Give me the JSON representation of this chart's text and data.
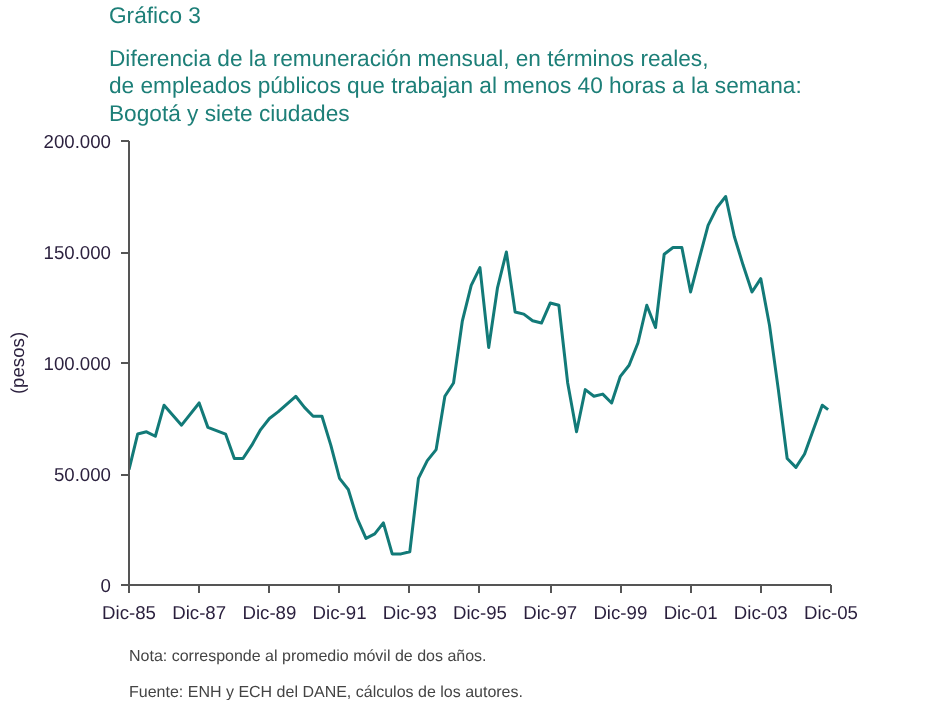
{
  "chart_data": {
    "type": "line",
    "title": "Gráfico 3",
    "subtitle": "Diferencia de la remuneración mensual, en términos reales,\nde empleados públicos que trabajan al menos 40 horas a la semana:\nBogotá y siete ciudades",
    "ylabel": "(pesos)",
    "annotations": [
      "Nota: corresponde al promedio móvil de dos años.",
      "Fuente: ENH y ECH del DANE, cálculos de los autores."
    ],
    "x": [
      "1985-12",
      "1986-03",
      "1986-06",
      "1986-09",
      "1986-12",
      "1987-06",
      "1987-12",
      "1988-03",
      "1988-09",
      "1988-12",
      "1989-03",
      "1989-06",
      "1989-09",
      "1989-12",
      "1990-03",
      "1990-09",
      "1990-12",
      "1991-03",
      "1991-06",
      "1991-09",
      "1991-12",
      "1992-03",
      "1992-06",
      "1992-09",
      "1992-12",
      "1993-03",
      "1993-06",
      "1993-09",
      "1993-12",
      "1994-03",
      "1994-06",
      "1994-09",
      "1994-12",
      "1995-03",
      "1995-06",
      "1995-09",
      "1995-12",
      "1996-03",
      "1996-06",
      "1996-09",
      "1996-12",
      "1997-03",
      "1997-06",
      "1997-09",
      "1997-12",
      "1998-03",
      "1998-06",
      "1998-09",
      "1998-12",
      "1999-03",
      "1999-06",
      "1999-09",
      "1999-12",
      "2000-03",
      "2000-06",
      "2000-09",
      "2000-12",
      "2001-03",
      "2001-06",
      "2001-09",
      "2001-12",
      "2002-03",
      "2002-06",
      "2002-09",
      "2002-12",
      "2003-03",
      "2003-06",
      "2003-09",
      "2003-12",
      "2004-03",
      "2004-06",
      "2004-09",
      "2004-12",
      "2005-03",
      "2005-06",
      "2005-09",
      "2005-11"
    ],
    "series": [
      {
        "color": "#127a78",
        "values": [
          52000,
          68000,
          69000,
          67000,
          81000,
          72000,
          82000,
          71000,
          68000,
          57000,
          57000,
          63000,
          70000,
          75000,
          78000,
          85000,
          80000,
          76000,
          76000,
          63000,
          48000,
          43000,
          30000,
          21000,
          23000,
          28000,
          14000,
          14000,
          15000,
          48000,
          56000,
          61000,
          85000,
          91000,
          119000,
          135000,
          143000,
          107000,
          134000,
          150000,
          123000,
          122000,
          119000,
          118000,
          127000,
          126000,
          91000,
          69000,
          88000,
          85000,
          86000,
          82000,
          94000,
          99000,
          109000,
          126000,
          116000,
          149000,
          152000,
          152000,
          132000,
          147000,
          162000,
          170000,
          175000,
          157000,
          144000,
          132000,
          138000,
          117000,
          88000,
          57000,
          53000,
          59000,
          70000,
          81000,
          79000
        ]
      }
    ],
    "xlim": [
      "1985-12",
      "2005-12"
    ],
    "xticks": [
      {
        "value": "1985-12",
        "label": "Dic-85"
      },
      {
        "value": "1987-12",
        "label": "Dic-87"
      },
      {
        "value": "1989-12",
        "label": "Dic-89"
      },
      {
        "value": "1991-12",
        "label": "Dic-91"
      },
      {
        "value": "1993-12",
        "label": "Dic-93"
      },
      {
        "value": "1995-12",
        "label": "Dic-95"
      },
      {
        "value": "1997-12",
        "label": "Dic-97"
      },
      {
        "value": "1999-12",
        "label": "Dic-99"
      },
      {
        "value": "2001-12",
        "label": "Dic-01"
      },
      {
        "value": "2003-12",
        "label": "Dic-03"
      },
      {
        "value": "2005-12",
        "label": "Dic-05"
      }
    ],
    "ylim": [
      0,
      200000
    ],
    "yticks": [
      0,
      {
        "value": 50000,
        "label": "50.000"
      },
      {
        "value": 100000,
        "label": "100.000"
      },
      {
        "value": 150000,
        "label": "150.000"
      },
      {
        "value": 200000,
        "label": "200.000"
      }
    ],
    "grid": false,
    "line_style": "solid",
    "marker": "none"
  }
}
